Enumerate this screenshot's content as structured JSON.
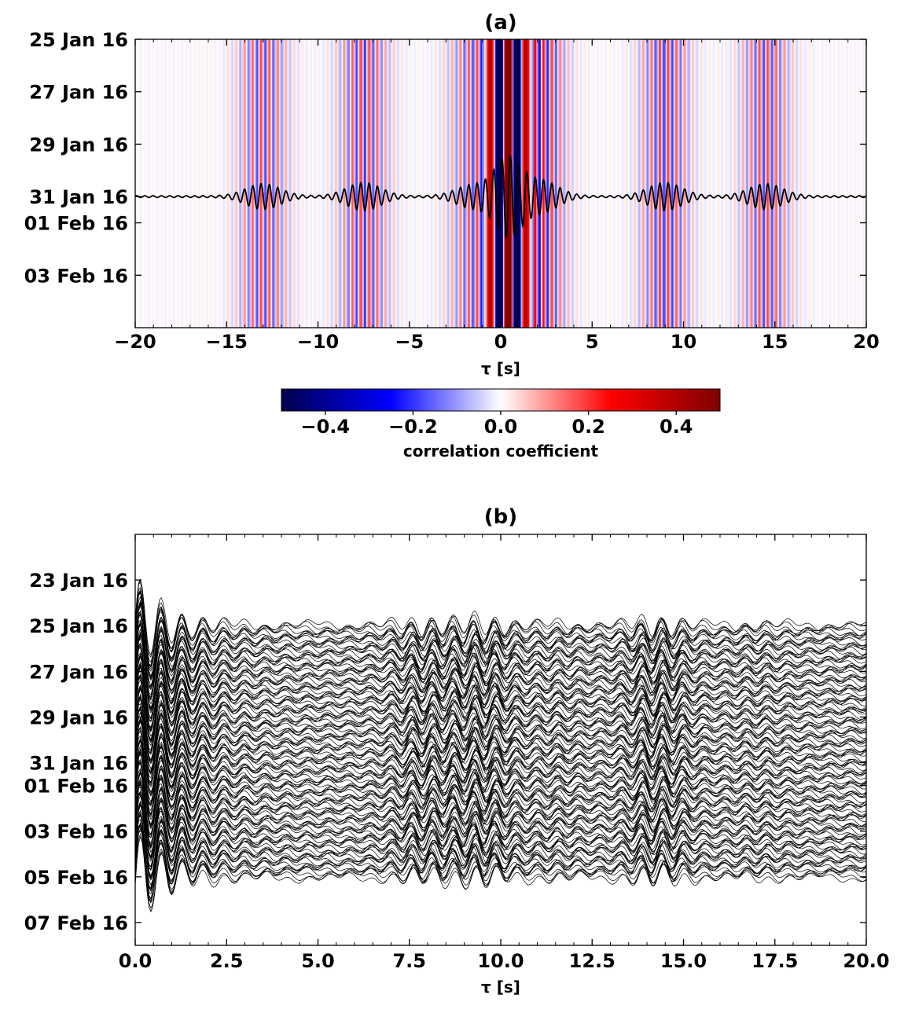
{
  "figure": {
    "panel_a_title": "(a)",
    "panel_b_title": "(b)"
  },
  "chart_data": [
    {
      "type": "heatmap",
      "panel": "a",
      "title": "(a)",
      "xlabel": "τ [s]",
      "ylabel": "",
      "xlim": [
        -20,
        20
      ],
      "x_ticks": [
        -20,
        -15,
        -10,
        -5,
        0,
        5,
        10,
        15,
        20
      ],
      "x_tick_labels": [
        "−20",
        "−15",
        "−10",
        "−5",
        "0",
        "5",
        "10",
        "15",
        "20"
      ],
      "ylim_dates": [
        "2016-01-25",
        "2016-02-05"
      ],
      "y_ticks": [
        "2016-01-25",
        "2016-01-27",
        "2016-01-29",
        "2016-01-31",
        "2016-02-01",
        "2016-02-03"
      ],
      "y_tick_labels": [
        "25 Jan 16",
        "27 Jan 16",
        "29 Jan 16",
        "31 Jan 16",
        "01 Feb 16",
        "03 Feb 16"
      ],
      "overlay_trace": {
        "date": "2016-01-31",
        "color": "#000000",
        "description_bands": [
          {
            "center": -13,
            "amplitude": 0.55
          },
          {
            "center": -7.5,
            "amplitude": 0.6
          },
          {
            "center": -1.5,
            "amplitude": 0.5
          },
          {
            "center": 0.4,
            "amplitude": 1.7
          },
          {
            "center": 2.2,
            "amplitude": 0.7
          },
          {
            "center": 9,
            "amplitude": 0.6
          },
          {
            "center": 14.5,
            "amplitude": 0.55
          }
        ]
      },
      "colorbar": {
        "label": "correlation coefficient",
        "vmin": -0.5,
        "vmax": 0.5,
        "cmap": "seismic",
        "ticks": [
          -0.4,
          -0.2,
          0.0,
          0.2,
          0.4
        ],
        "tick_labels": [
          "−0.4",
          "−0.2",
          "0.0",
          "0.2",
          "0.4"
        ],
        "colors": [
          "#00004c",
          "#0000ff",
          "#ffffff",
          "#ff0000",
          "#7f0000"
        ]
      }
    },
    {
      "type": "line",
      "panel": "b",
      "title": "(b)",
      "xlabel": "τ [s]",
      "ylabel": "",
      "xlim": [
        0.0,
        20.0
      ],
      "x_ticks": [
        0.0,
        2.5,
        5.0,
        7.5,
        10.0,
        12.5,
        15.0,
        17.5,
        20.0
      ],
      "x_tick_labels": [
        "0.0",
        "2.5",
        "5.0",
        "7.5",
        "10.0",
        "12.5",
        "15.0",
        "17.5",
        "20.0"
      ],
      "ylim_dates": [
        "2016-01-21",
        "2016-02-08"
      ],
      "y_ticks": [
        "2016-01-23",
        "2016-01-25",
        "2016-01-27",
        "2016-01-29",
        "2016-01-31",
        "2016-02-01",
        "2016-02-03",
        "2016-02-05",
        "2016-02-07"
      ],
      "y_tick_labels": [
        "23 Jan 16",
        "25 Jan 16",
        "27 Jan 16",
        "29 Jan 16",
        "31 Jan 16",
        "01 Feb 16",
        "03 Feb 16",
        "05 Feb 16",
        "07 Feb 16"
      ],
      "trace_date_range": [
        "2016-01-25",
        "2016-02-05"
      ],
      "line_color": "#000000"
    }
  ]
}
